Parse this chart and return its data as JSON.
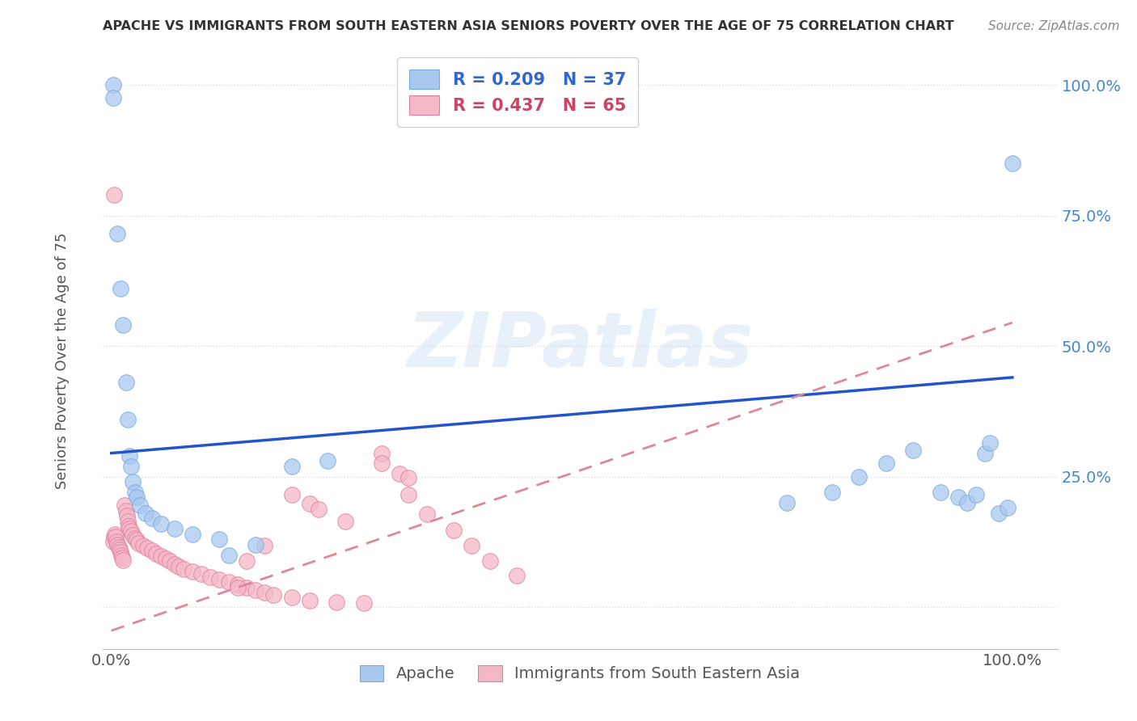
{
  "title": "APACHE VS IMMIGRANTS FROM SOUTH EASTERN ASIA SENIORS POVERTY OVER THE AGE OF 75 CORRELATION CHART",
  "source": "Source: ZipAtlas.com",
  "ylabel": "Seniors Poverty Over the Age of 75",
  "bg_color": "#ffffff",
  "apache_color": "#a8c8f0",
  "sea_color": "#f5b8c8",
  "apache_edge": "#7aaadd",
  "sea_edge": "#e080a0",
  "apache_line_color": "#2255cc",
  "sea_line_color": "#dd8898",
  "watermark": "ZIPatlas",
  "apache_x": [
    0.002,
    0.002,
    0.007,
    0.01,
    0.013,
    0.016,
    0.018,
    0.02,
    0.022,
    0.024,
    0.026,
    0.028,
    0.032,
    0.038,
    0.045,
    0.055,
    0.07,
    0.09,
    0.12,
    0.16,
    0.75,
    0.8,
    0.83,
    0.86,
    0.89,
    0.92,
    0.94,
    0.95,
    0.96,
    0.97,
    0.975,
    0.985,
    0.995,
    1.0,
    0.2,
    0.24,
    0.13
  ],
  "apache_y": [
    1.0,
    0.975,
    0.715,
    0.61,
    0.54,
    0.43,
    0.36,
    0.29,
    0.27,
    0.24,
    0.22,
    0.21,
    0.195,
    0.18,
    0.17,
    0.16,
    0.15,
    0.14,
    0.13,
    0.12,
    0.2,
    0.22,
    0.25,
    0.275,
    0.3,
    0.22,
    0.21,
    0.2,
    0.215,
    0.295,
    0.315,
    0.18,
    0.19,
    0.85,
    0.27,
    0.28,
    0.1
  ],
  "sea_x": [
    0.002,
    0.003,
    0.004,
    0.005,
    0.006,
    0.007,
    0.008,
    0.009,
    0.01,
    0.011,
    0.012,
    0.013,
    0.015,
    0.016,
    0.017,
    0.018,
    0.019,
    0.02,
    0.022,
    0.024,
    0.026,
    0.028,
    0.03,
    0.035,
    0.04,
    0.045,
    0.05,
    0.055,
    0.06,
    0.065,
    0.07,
    0.075,
    0.08,
    0.09,
    0.1,
    0.11,
    0.12,
    0.13,
    0.14,
    0.15,
    0.16,
    0.17,
    0.18,
    0.2,
    0.22,
    0.25,
    0.28,
    0.3,
    0.32,
    0.33,
    0.35,
    0.38,
    0.4,
    0.42,
    0.45,
    0.2,
    0.22,
    0.3,
    0.33,
    0.17,
    0.15,
    0.23,
    0.003,
    0.14,
    0.26
  ],
  "sea_y": [
    0.125,
    0.135,
    0.14,
    0.135,
    0.125,
    0.12,
    0.115,
    0.11,
    0.105,
    0.1,
    0.095,
    0.09,
    0.195,
    0.185,
    0.175,
    0.165,
    0.155,
    0.15,
    0.145,
    0.138,
    0.132,
    0.128,
    0.123,
    0.118,
    0.113,
    0.108,
    0.103,
    0.098,
    0.093,
    0.088,
    0.083,
    0.078,
    0.073,
    0.068,
    0.063,
    0.058,
    0.053,
    0.048,
    0.043,
    0.038,
    0.033,
    0.028,
    0.023,
    0.018,
    0.013,
    0.01,
    0.008,
    0.295,
    0.255,
    0.215,
    0.178,
    0.148,
    0.118,
    0.088,
    0.06,
    0.215,
    0.198,
    0.275,
    0.248,
    0.118,
    0.088,
    0.188,
    0.79,
    0.038,
    0.165
  ],
  "apache_line": [
    0.0,
    0.295,
    1.0,
    0.44
  ],
  "sea_line": [
    0.0,
    -0.045,
    1.0,
    0.545
  ],
  "xlim": [
    -0.01,
    1.05
  ],
  "ylim": [
    -0.08,
    1.08
  ],
  "yticks": [
    0.0,
    0.25,
    0.5,
    0.75,
    1.0
  ],
  "ytick_labels": [
    "",
    "25.0%",
    "50.0%",
    "75.0%",
    "100.0%"
  ],
  "xticks": [
    0.0,
    1.0
  ],
  "xtick_labels": [
    "0.0%",
    "100.0%"
  ],
  "legend1_text": "R = 0.209   N = 37",
  "legend2_text": "R = 0.437   N = 65",
  "legend1_color": "#3366cc",
  "legend2_color": "#cc4466",
  "ytick_color": "#4488cc",
  "xtick_color": "#555555",
  "title_color": "#333333",
  "source_color": "#888888",
  "grid_color": "#dddddd",
  "bottom_label1": "Apache",
  "bottom_label2": "Immigrants from South Eastern Asia"
}
